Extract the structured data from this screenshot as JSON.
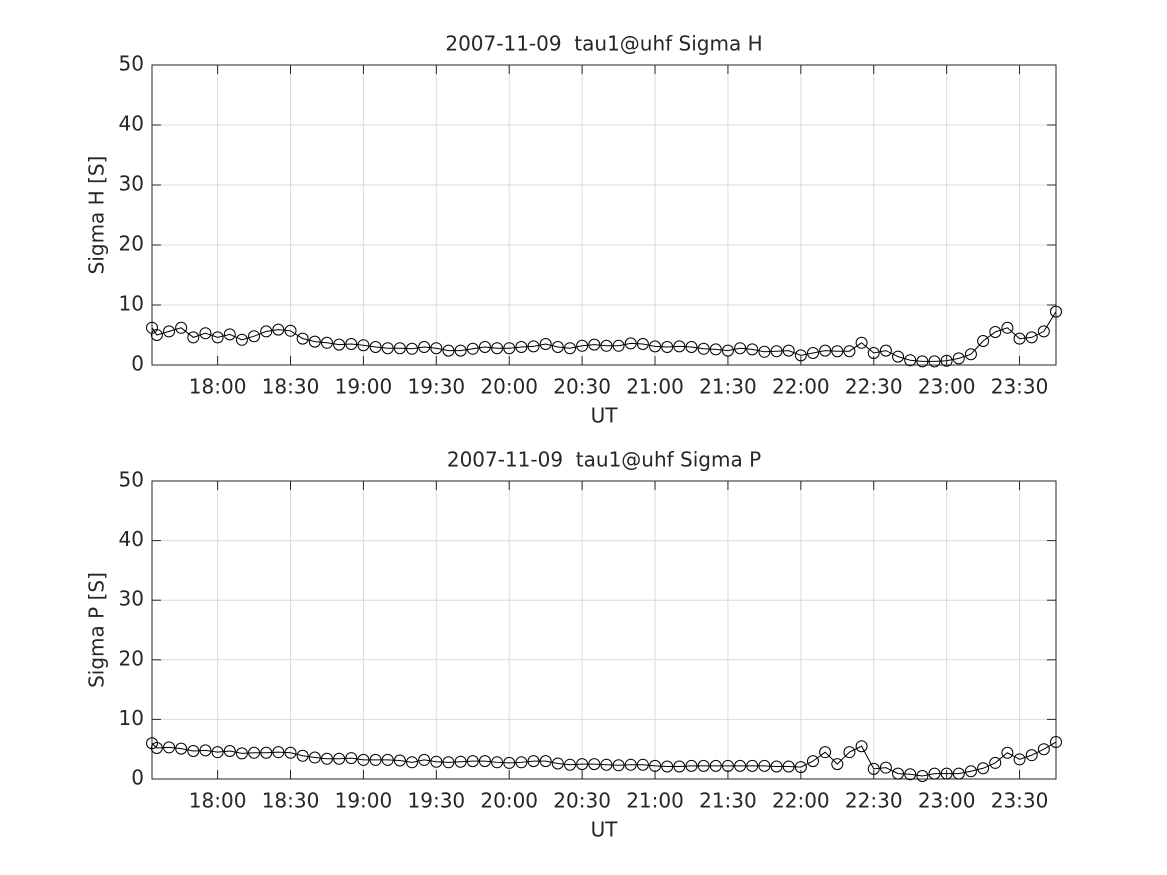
{
  "chart_data": [
    {
      "type": "line",
      "title": "2007-11-09  tau1@uhf Sigma H",
      "xlabel": "UT",
      "ylabel": "Sigma H [S]",
      "x": [
        "17:33",
        "17:35",
        "17:40",
        "17:45",
        "17:50",
        "17:55",
        "18:00",
        "18:05",
        "18:10",
        "18:15",
        "18:20",
        "18:25",
        "18:30",
        "18:35",
        "18:40",
        "18:45",
        "18:50",
        "18:55",
        "19:00",
        "19:05",
        "19:10",
        "19:15",
        "19:20",
        "19:25",
        "19:30",
        "19:35",
        "19:40",
        "19:45",
        "19:50",
        "19:55",
        "20:00",
        "20:05",
        "20:10",
        "20:15",
        "20:20",
        "20:25",
        "20:30",
        "20:35",
        "20:40",
        "20:45",
        "20:50",
        "20:55",
        "21:00",
        "21:05",
        "21:10",
        "21:15",
        "21:20",
        "21:25",
        "21:30",
        "21:35",
        "21:40",
        "21:45",
        "21:50",
        "21:55",
        "22:00",
        "22:05",
        "22:10",
        "22:15",
        "22:20",
        "22:25",
        "22:30",
        "22:35",
        "22:40",
        "22:45",
        "22:50",
        "22:55",
        "23:00",
        "23:05",
        "23:10",
        "23:15",
        "23:20",
        "23:25",
        "23:30",
        "23:35",
        "23:40",
        "23:45"
      ],
      "values": [
        6.2,
        5.0,
        5.6,
        6.2,
        4.6,
        5.3,
        4.6,
        5.1,
        4.2,
        4.8,
        5.6,
        5.9,
        5.7,
        4.4,
        3.9,
        3.7,
        3.4,
        3.5,
        3.3,
        3.0,
        2.8,
        2.8,
        2.7,
        3.0,
        2.8,
        2.4,
        2.4,
        2.7,
        3.0,
        2.8,
        2.8,
        3.0,
        3.1,
        3.5,
        3.0,
        2.8,
        3.2,
        3.4,
        3.2,
        3.2,
        3.6,
        3.5,
        3.1,
        3.0,
        3.1,
        3.0,
        2.7,
        2.6,
        2.4,
        2.8,
        2.6,
        2.2,
        2.3,
        2.4,
        1.6,
        2.0,
        2.4,
        2.3,
        2.3,
        3.7,
        2.0,
        2.4,
        1.4,
        0.8,
        0.6,
        0.6,
        0.7,
        1.1,
        1.8,
        4.0,
        5.5,
        6.2,
        4.4,
        4.6,
        5.6,
        8.9
      ],
      "color": "#000000",
      "marker": "circle",
      "xlim": [
        "17:33",
        "23:45"
      ],
      "xticks": [
        "18:00",
        "18:30",
        "19:00",
        "19:30",
        "20:00",
        "20:30",
        "21:00",
        "21:30",
        "22:00",
        "22:30",
        "23:00",
        "23:30"
      ],
      "ylim": [
        0,
        50
      ],
      "yticks": [
        0,
        10,
        20,
        30,
        40,
        50
      ],
      "grid": true
    },
    {
      "type": "line",
      "title": "2007-11-09  tau1@uhf Sigma P",
      "xlabel": "UT",
      "ylabel": "Sigma P [S]",
      "x": [
        "17:33",
        "17:35",
        "17:40",
        "17:45",
        "17:50",
        "17:55",
        "18:00",
        "18:05",
        "18:10",
        "18:15",
        "18:20",
        "18:25",
        "18:30",
        "18:35",
        "18:40",
        "18:45",
        "18:50",
        "18:55",
        "19:00",
        "19:05",
        "19:10",
        "19:15",
        "19:20",
        "19:25",
        "19:30",
        "19:35",
        "19:40",
        "19:45",
        "19:50",
        "19:55",
        "20:00",
        "20:05",
        "20:10",
        "20:15",
        "20:20",
        "20:25",
        "20:30",
        "20:35",
        "20:40",
        "20:45",
        "20:50",
        "20:55",
        "21:00",
        "21:05",
        "21:10",
        "21:15",
        "21:20",
        "21:25",
        "21:30",
        "21:35",
        "21:40",
        "21:45",
        "21:50",
        "21:55",
        "22:00",
        "22:05",
        "22:10",
        "22:15",
        "22:20",
        "22:25",
        "22:30",
        "22:35",
        "22:40",
        "22:45",
        "22:50",
        "22:55",
        "23:00",
        "23:05",
        "23:10",
        "23:15",
        "23:20",
        "23:25",
        "23:30",
        "23:35",
        "23:40",
        "23:45"
      ],
      "values": [
        6.0,
        5.2,
        5.3,
        5.1,
        4.7,
        4.8,
        4.5,
        4.7,
        4.3,
        4.4,
        4.4,
        4.5,
        4.4,
        3.9,
        3.6,
        3.4,
        3.4,
        3.5,
        3.2,
        3.2,
        3.2,
        3.1,
        2.8,
        3.2,
        2.9,
        2.8,
        2.9,
        3.0,
        3.0,
        2.8,
        2.7,
        2.8,
        3.0,
        3.0,
        2.6,
        2.4,
        2.5,
        2.5,
        2.4,
        2.3,
        2.4,
        2.4,
        2.2,
        2.1,
        2.1,
        2.2,
        2.2,
        2.2,
        2.2,
        2.2,
        2.2,
        2.2,
        2.1,
        2.1,
        2.0,
        3.0,
        4.5,
        2.5,
        4.5,
        5.5,
        1.7,
        1.9,
        0.9,
        0.8,
        0.5,
        0.9,
        0.9,
        0.9,
        1.3,
        1.8,
        2.7,
        4.4,
        3.3,
        4.0,
        5.0,
        6.2
      ],
      "color": "#000000",
      "marker": "circle",
      "xlim": [
        "17:33",
        "23:45"
      ],
      "xticks": [
        "18:00",
        "18:30",
        "19:00",
        "19:30",
        "20:00",
        "20:30",
        "21:00",
        "21:30",
        "22:00",
        "22:30",
        "23:00",
        "23:30"
      ],
      "ylim": [
        0,
        50
      ],
      "yticks": [
        0,
        10,
        20,
        30,
        40,
        50
      ],
      "grid": true
    }
  ]
}
